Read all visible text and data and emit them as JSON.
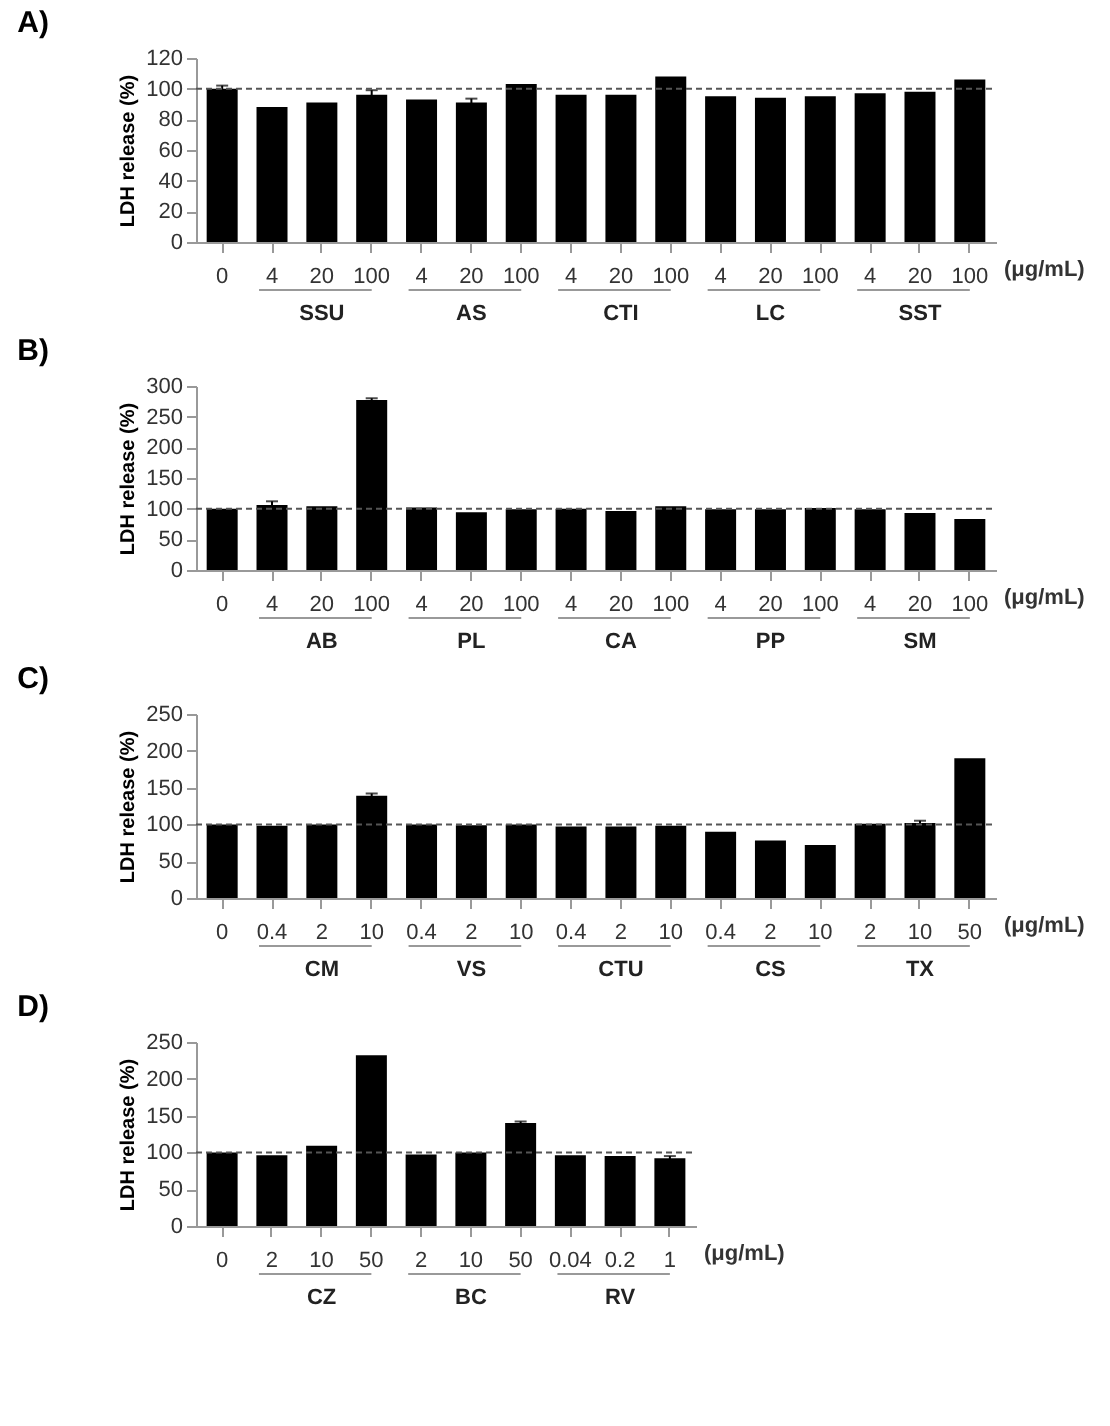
{
  "chart_data": [
    {
      "type": "bar",
      "title": "A)",
      "ylabel": "LDH release (%)",
      "categories": [
        "0",
        "4",
        "20",
        "100",
        "4",
        "20",
        "100",
        "4",
        "20",
        "100",
        "4",
        "20",
        "100",
        "4",
        "20",
        "100"
      ],
      "values": [
        100,
        88,
        91,
        96,
        93,
        91,
        103,
        96,
        96,
        108,
        95,
        94,
        95,
        97,
        98,
        106
      ],
      "errors": [
        2,
        null,
        null,
        3,
        null,
        2.5,
        null,
        null,
        null,
        null,
        null,
        null,
        null,
        null,
        null,
        null
      ],
      "color": "#000000",
      "ylim": [
        0,
        120
      ],
      "yticks": [
        0,
        20,
        40,
        60,
        80,
        100,
        120
      ],
      "ref_lines": [
        {
          "axis": "y",
          "value": 100,
          "color": "#555555",
          "line_style": "dashed"
        }
      ],
      "annotations": [
        "(μg/mL)",
        "SSU",
        "AS",
        "CTI",
        "LC",
        "SST"
      ]
    },
    {
      "type": "bar",
      "title": "B)",
      "ylabel": "LDH release (%)",
      "categories": [
        "0",
        "4",
        "20",
        "100",
        "4",
        "20",
        "100",
        "4",
        "20",
        "100",
        "4",
        "20",
        "100",
        "4",
        "20",
        "100"
      ],
      "values": [
        100,
        106,
        104,
        277,
        102,
        94,
        99,
        100,
        96,
        104,
        99,
        99,
        101,
        99,
        93,
        83
      ],
      "errors": [
        null,
        6,
        null,
        3,
        null,
        null,
        null,
        null,
        null,
        null,
        null,
        null,
        null,
        null,
        null,
        null
      ],
      "color": "#000000",
      "ylim": [
        0,
        300
      ],
      "yticks": [
        0,
        50,
        100,
        150,
        200,
        250,
        300
      ],
      "ref_lines": [
        {
          "axis": "y",
          "value": 100,
          "color": "#555555",
          "line_style": "dashed"
        }
      ],
      "annotations": [
        "(μg/mL)",
        "AB",
        "PL",
        "CA",
        "PP",
        "SM"
      ]
    },
    {
      "type": "bar",
      "title": "C)",
      "ylabel": "LDH release (%)",
      "categories": [
        "0",
        "0.4",
        "2",
        "10",
        "0.4",
        "2",
        "10",
        "0.4",
        "2",
        "10",
        "0.4",
        "2",
        "10",
        "2",
        "10",
        "50"
      ],
      "values": [
        100,
        98,
        100,
        139,
        100,
        99,
        100,
        97,
        97,
        98,
        90,
        78,
        72,
        101,
        102,
        190
      ],
      "errors": [
        null,
        null,
        null,
        3,
        null,
        null,
        null,
        null,
        null,
        null,
        null,
        null,
        null,
        null,
        3,
        null
      ],
      "color": "#000000",
      "ylim": [
        0,
        250
      ],
      "yticks": [
        0,
        50,
        100,
        150,
        200,
        250
      ],
      "ref_lines": [
        {
          "axis": "y",
          "value": 100,
          "color": "#555555",
          "line_style": "dashed"
        }
      ],
      "annotations": [
        "(μg/mL)",
        "CM",
        "VS",
        "CTU",
        "CS",
        "TX"
      ]
    },
    {
      "type": "bar",
      "title": "D)",
      "ylabel": "LDH release (%)",
      "categories": [
        "0",
        "2",
        "10",
        "50",
        "2",
        "10",
        "50",
        "0.04",
        "0.2",
        "1"
      ],
      "values": [
        100,
        96,
        109,
        232,
        97,
        100,
        140,
        96,
        95,
        92
      ],
      "errors": [
        null,
        null,
        null,
        null,
        null,
        null,
        2,
        null,
        null,
        3
      ],
      "color": "#000000",
      "ylim": [
        0,
        250
      ],
      "yticks": [
        0,
        50,
        100,
        150,
        200,
        250
      ],
      "ref_lines": [
        {
          "axis": "y",
          "value": 100,
          "color": "#555555",
          "line_style": "dashed"
        }
      ],
      "annotations": [
        "(μg/mL)",
        "CZ",
        "BC",
        "RV"
      ]
    }
  ]
}
